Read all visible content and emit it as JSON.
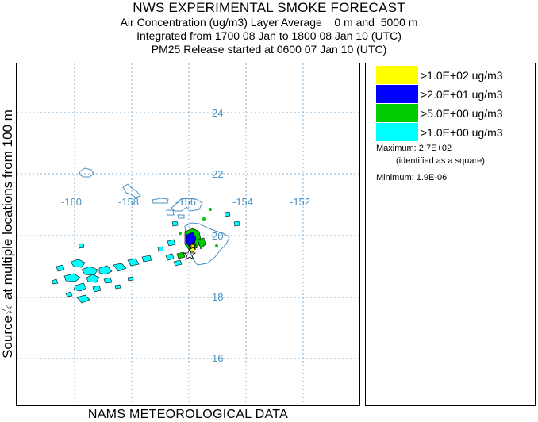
{
  "header": {
    "title": "NWS EXPERIMENTAL SMOKE FORECAST",
    "line2": "Air Concentration (ug/m3) Layer Average    0 m and  5000 m",
    "line3": "Integrated from 1700 08 Jan to 1800 08 Jan 10 (UTC)",
    "line4": "PM25 Release started at 0600 07 Jan 10 (UTC)"
  },
  "map": {
    "side_label": "Source☆ at multiple locations    from   100 m",
    "bottom_label": "NAMS METEOROLOGICAL DATA",
    "lat_labels": [
      "24",
      "22",
      "20",
      "18",
      "16"
    ],
    "lon_labels": [
      "-160",
      "-158",
      "-156",
      "-154",
      "-152"
    ],
    "grid_color": "#7fb2d8",
    "label_color": "#4a90c0"
  },
  "legend": {
    "items": [
      {
        "label": ">1.0E+02 ug/m3",
        "color": "#ffff00"
      },
      {
        "label": ">2.0E+01 ug/m3",
        "color": "#0000ff"
      },
      {
        "label": ">5.0E+00 ug/m3",
        "color": "#00cc00"
      },
      {
        "label": ">1.0E+00 ug/m3",
        "color": "#00ffff"
      }
    ],
    "maximum": "Maximum: 2.7E+02",
    "maximum_note": "(identified as a square)",
    "minimum": "Minimum: 1.9E-06"
  }
}
